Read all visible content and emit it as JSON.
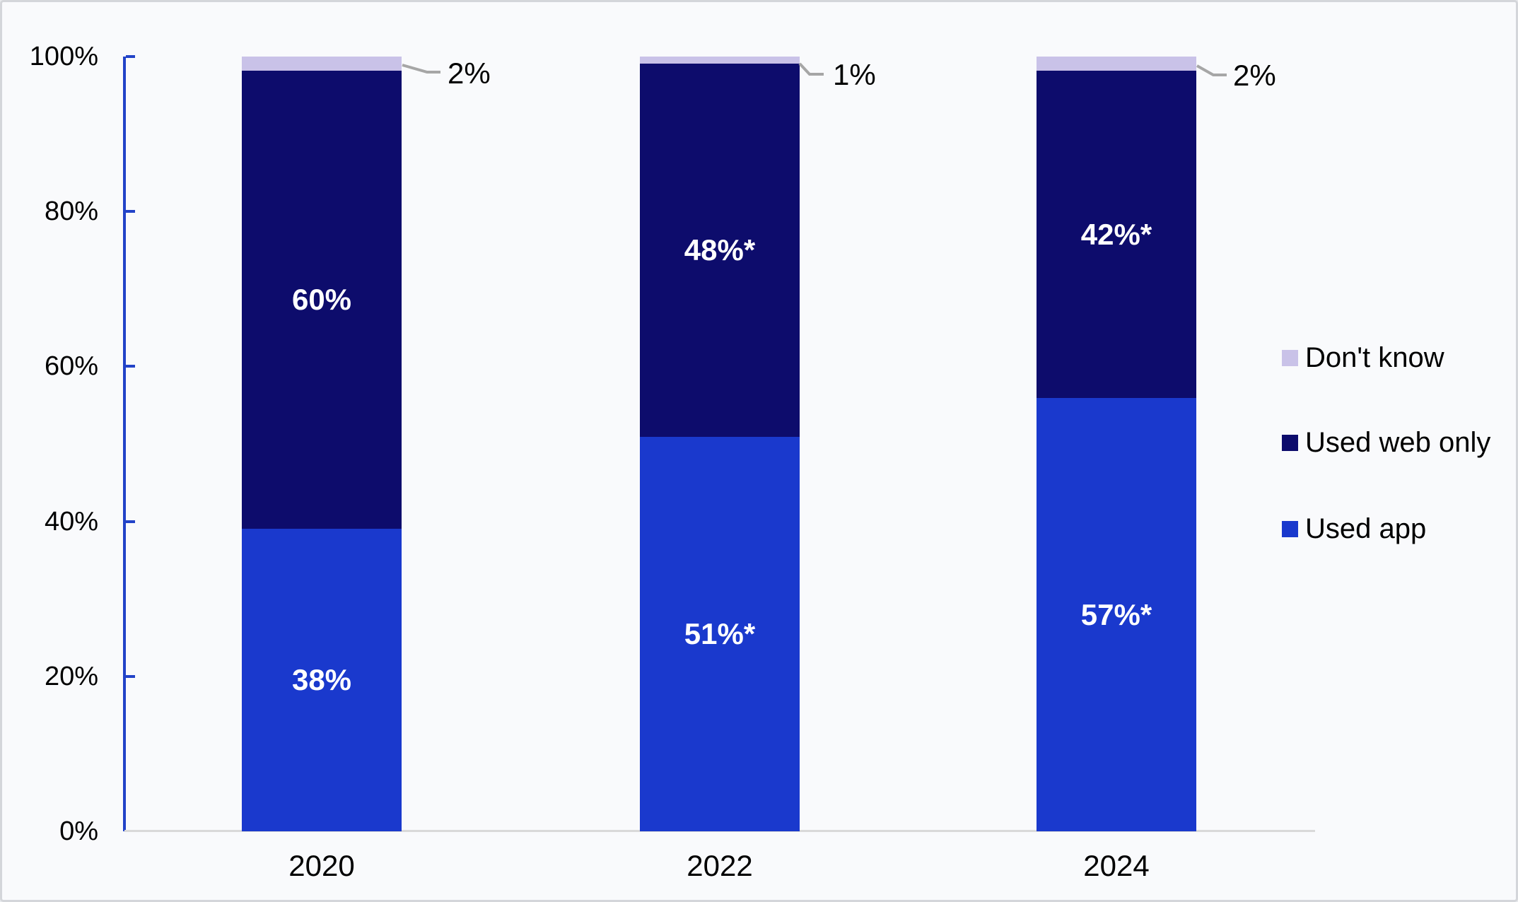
{
  "chart_data": {
    "type": "bar",
    "stacked": true,
    "title": "",
    "xlabel": "",
    "ylabel": "",
    "categories": [
      "2020",
      "2022",
      "2024"
    ],
    "series": [
      {
        "name": "Used app",
        "color": "#1a39cd",
        "values": [
          38,
          51,
          57
        ],
        "labels": [
          "38%",
          "51%*",
          "57%*"
        ]
      },
      {
        "name": "Used web only",
        "color": "#0d0c6c",
        "values": [
          60,
          48,
          42
        ],
        "labels": [
          "60%",
          "48%*",
          "42%*"
        ]
      },
      {
        "name": "Don't know",
        "color": "#c9c2e8",
        "values": [
          2,
          1,
          2
        ],
        "labels": [
          "2%",
          "1%",
          "2%"
        ],
        "labels_shown_as_callouts": true
      }
    ],
    "ylim": [
      0,
      100
    ],
    "y_ticks": [
      "0%",
      "20%",
      "40%",
      "60%",
      "80%",
      "100%"
    ],
    "grid": false,
    "legend_position": "right",
    "legend_order_top_to_bottom": [
      "Don't know",
      "Used web only",
      "Used app"
    ]
  },
  "colors": {
    "axis_line": "#2243c8",
    "baseline": "#d9d9d9",
    "callout_line": "#a6a6a6",
    "background": "#f9fafc",
    "text": "#000000",
    "bar_label_text": "#ffffff"
  }
}
